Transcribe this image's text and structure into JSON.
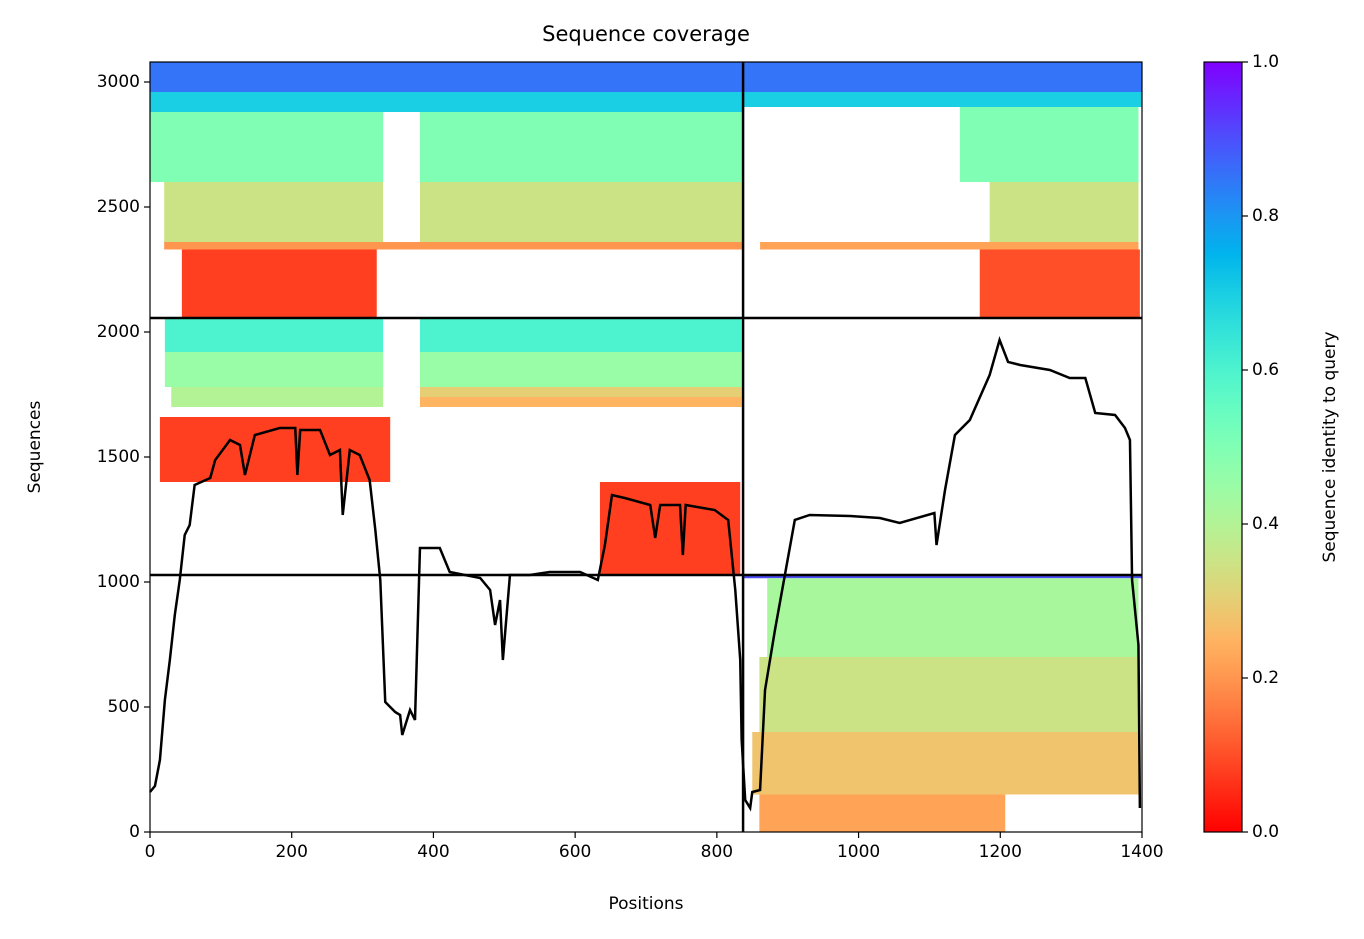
{
  "chart_data": {
    "type": "coverage",
    "title": "Sequence coverage",
    "xlabel": "Positions",
    "ylabel": "Sequences",
    "colorbar_label": "Sequence identity to query",
    "cmap": "rainbow_r",
    "xlim": [
      0,
      1400
    ],
    "ylim": [
      0,
      3080
    ],
    "xticks": [
      0,
      200,
      400,
      600,
      800,
      1000,
      1200,
      1400
    ],
    "yticks": [
      0,
      500,
      1000,
      1500,
      2000,
      2500,
      3000
    ],
    "clim": [
      0,
      1
    ],
    "cticks": [
      {
        "value": 0,
        "label": "0.0"
      },
      0.2,
      0.4,
      0.6,
      0.8,
      {
        "value": 1,
        "label": "1.0"
      }
    ],
    "boundaries": {
      "x": [
        837
      ],
      "y": [
        1028,
        2056
      ]
    },
    "blocks": [
      {
        "x": [
          0,
          837
        ],
        "y": [
          2960,
          3080
        ],
        "identity": 0.85
      },
      {
        "x": [
          0,
          837
        ],
        "y": [
          2880,
          2960
        ],
        "identity": 0.7
      },
      {
        "x": [
          0,
          329
        ],
        "y": [
          2600,
          2880
        ],
        "identity": 0.5
      },
      {
        "x": [
          381,
          837
        ],
        "y": [
          2600,
          2880
        ],
        "identity": 0.5
      },
      {
        "x": [
          20,
          329
        ],
        "y": [
          2360,
          2600
        ],
        "identity": 0.35
      },
      {
        "x": [
          381,
          837
        ],
        "y": [
          2360,
          2600
        ],
        "identity": 0.35
      },
      {
        "x": [
          20,
          837
        ],
        "y": [
          2330,
          2360
        ],
        "identity": 0.2
      },
      {
        "x": [
          45,
          320
        ],
        "y": [
          2056,
          2330
        ],
        "identity": 0.08
      },
      {
        "x": [
          837,
          1400
        ],
        "y": [
          2960,
          3080
        ],
        "identity": 0.85
      },
      {
        "x": [
          837,
          1400
        ],
        "y": [
          2900,
          2960
        ],
        "identity": 0.7
      },
      {
        "x": [
          1143,
          1395
        ],
        "y": [
          2600,
          2900
        ],
        "identity": 0.5
      },
      {
        "x": [
          1185,
          1395
        ],
        "y": [
          2360,
          2600
        ],
        "identity": 0.35
      },
      {
        "x": [
          861,
          1395
        ],
        "y": [
          2330,
          2360
        ],
        "identity": 0.22
      },
      {
        "x": [
          1171,
          1397
        ],
        "y": [
          2056,
          2330
        ],
        "identity": 0.1
      },
      {
        "x": [
          21,
          329
        ],
        "y": [
          1920,
          2056
        ],
        "identity": 0.6
      },
      {
        "x": [
          381,
          835
        ],
        "y": [
          1920,
          2056
        ],
        "identity": 0.6
      },
      {
        "x": [
          21,
          329
        ],
        "y": [
          1780,
          1920
        ],
        "identity": 0.45
      },
      {
        "x": [
          381,
          835
        ],
        "y": [
          1780,
          1920
        ],
        "identity": 0.45
      },
      {
        "x": [
          30,
          329
        ],
        "y": [
          1700,
          1780
        ],
        "identity": 0.4
      },
      {
        "x": [
          381,
          835
        ],
        "y": [
          1740,
          1780
        ],
        "identity": 0.3
      },
      {
        "x": [
          381,
          835
        ],
        "y": [
          1700,
          1740
        ],
        "identity": 0.25
      },
      {
        "x": [
          14,
          339
        ],
        "y": [
          1400,
          1660
        ],
        "identity": 0.08
      },
      {
        "x": [
          635,
          833
        ],
        "y": [
          1028,
          1400
        ],
        "identity": 0.08
      },
      {
        "x": [
          837,
          1400
        ],
        "y": [
          1015,
          1028
        ],
        "identity": 0.9
      },
      {
        "x": [
          871,
          1395
        ],
        "y": [
          700,
          1015
        ],
        "identity": 0.42
      },
      {
        "x": [
          860,
          1395
        ],
        "y": [
          400,
          700
        ],
        "identity": 0.35
      },
      {
        "x": [
          850,
          1395
        ],
        "y": [
          150,
          400
        ],
        "identity": 0.28
      },
      {
        "x": [
          860,
          1207
        ],
        "y": [
          0,
          150
        ],
        "identity": 0.22
      }
    ],
    "series": [
      {
        "name": "coverage",
        "color": "#000000",
        "x": [
          0,
          7,
          14,
          21,
          28,
          35,
          42,
          49,
          56,
          63,
          85,
          92,
          113,
          127,
          134,
          148,
          183,
          205,
          208,
          212,
          240,
          254,
          268,
          272,
          282,
          296,
          310,
          318,
          325,
          332,
          346,
          353,
          356,
          367,
          374,
          381,
          409,
          423,
          466,
          480,
          487,
          494,
          498,
          508,
          536,
          564,
          607,
          632,
          642,
          652,
          670,
          706,
          713,
          720,
          748,
          752,
          756,
          797,
          816,
          826,
          833,
          835,
          840,
          847,
          850,
          861,
          868,
          882,
          896,
          910,
          931,
          988,
          1030,
          1058,
          1107,
          1110,
          1122,
          1136,
          1157,
          1185,
          1199,
          1211,
          1228,
          1270,
          1298,
          1320,
          1334,
          1362,
          1376,
          1383,
          1386,
          1395,
          1397
        ],
        "values": [
          160,
          184,
          288,
          528,
          688,
          868,
          1008,
          1188,
          1228,
          1388,
          1416,
          1488,
          1568,
          1548,
          1428,
          1588,
          1616,
          1616,
          1428,
          1608,
          1608,
          1508,
          1528,
          1268,
          1528,
          1508,
          1408,
          1208,
          1008,
          520,
          480,
          468,
          388,
          488,
          448,
          1136,
          1136,
          1040,
          1016,
          968,
          828,
          928,
          688,
          1028,
          1028,
          1040,
          1040,
          1008,
          1148,
          1348,
          1336,
          1308,
          1176,
          1308,
          1308,
          1108,
          1308,
          1288,
          1248,
          968,
          688,
          368,
          128,
          96,
          160,
          168,
          568,
          808,
          1028,
          1248,
          1268,
          1264,
          1256,
          1236,
          1276,
          1148,
          1368,
          1588,
          1648,
          1828,
          1968,
          1880,
          1868,
          1848,
          1816,
          1816,
          1676,
          1668,
          1616,
          1568,
          1008,
          748,
          96
        ]
      }
    ]
  }
}
